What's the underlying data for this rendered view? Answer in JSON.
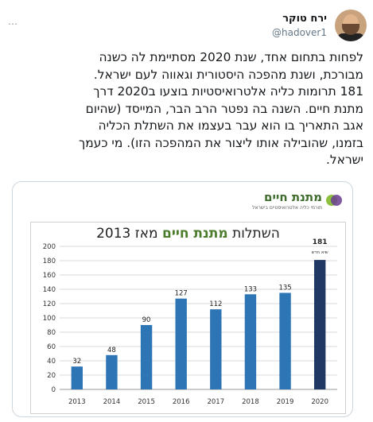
{
  "author": {
    "display_name": "ירח טוקר",
    "handle": "@hadover1",
    "avatar_icon": "person-avatar"
  },
  "more_icon": "…",
  "tweet_lines": [
    "לפחות בתחום אחד, שנת 2020 מסתיימת לה כשנה",
    "מבורכת, ושנת מהפכה היסטורית וגאווה לעם ישראל.",
    "181 תרומות כליה אלטרואיסטיות בוצעו ב2020 דרך",
    "מתנת חיים. השנה בה נפטר הרב הבר, המייסד (שהיום",
    "אגב התאריך בו הוא עבר בעצמו את השתלת הכליה",
    "בזמנו, שהובילה אותו ליצור את המהפכה הזו). מי כעמך",
    "ישראל."
  ],
  "logo": {
    "name": "מתנת חיים",
    "tagline": "תורמי כליה אלטרואיסטיים בישראל"
  },
  "chart_title": {
    "part1": "השתלות ",
    "highlight": "מתנת חיים",
    "part2": " מאז 2013"
  },
  "chart_data": {
    "type": "bar",
    "categories": [
      "2013",
      "2014",
      "2015",
      "2016",
      "2017",
      "2018",
      "2019",
      "2020"
    ],
    "values": [
      32,
      48,
      90,
      127,
      112,
      133,
      135,
      181
    ],
    "highlight_index": 7,
    "highlight_note": "שיא חדש",
    "ylim": [
      0,
      200
    ],
    "yticks": [
      0,
      20,
      40,
      60,
      80,
      100,
      120,
      140,
      160,
      180,
      200
    ],
    "bar_color": "#2e75b6",
    "highlight_color": "#1f3864",
    "grid": true
  }
}
